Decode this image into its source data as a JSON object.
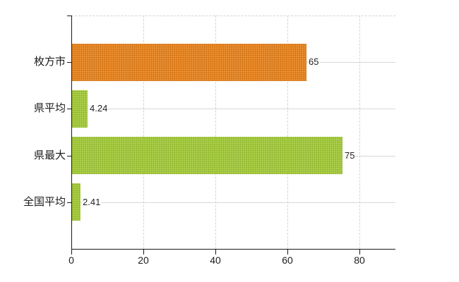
{
  "chart_data": {
    "type": "bar",
    "orientation": "horizontal",
    "title": "",
    "xlabel": "",
    "ylabel": "",
    "categories": [
      "枚方市",
      "県平均",
      "県最大",
      "全国平均"
    ],
    "values": [
      65,
      4.24,
      75,
      2.41
    ],
    "value_labels": [
      "65",
      "4.24",
      "75",
      "2.41"
    ],
    "bar_colors": [
      "#e8831c",
      "#a3ca39",
      "#a3ca39",
      "#a3ca39"
    ],
    "xlim": [
      0,
      90
    ],
    "x_ticks": [
      0,
      20,
      40,
      60,
      80
    ],
    "grid": "on",
    "legend": "none"
  },
  "colors": {
    "accent_orange": "#e8831c",
    "accent_green": "#a3ca39",
    "gridline": "#d6d9d2",
    "axis": "#1a1a1a",
    "text": "#222222",
    "background": "#ffffff"
  }
}
